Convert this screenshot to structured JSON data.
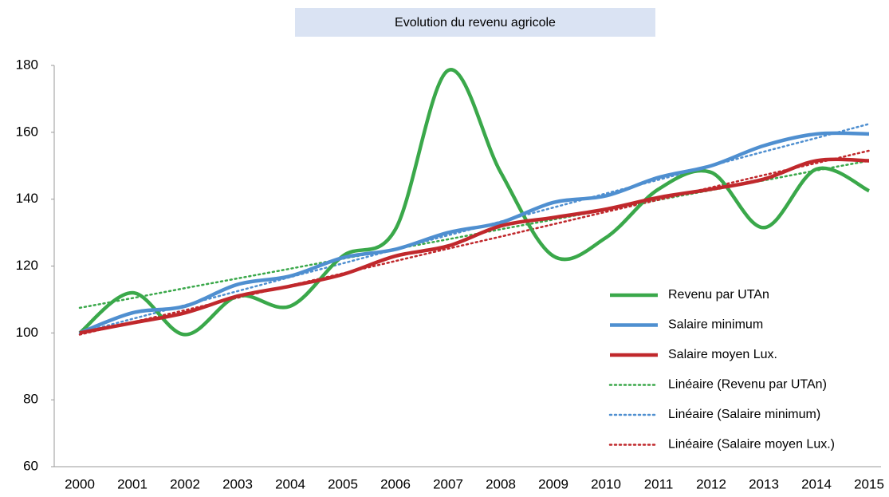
{
  "chart_data": {
    "type": "line",
    "title": "Evolution du revenu agricole",
    "categories": [
      "2000",
      "2001",
      "2002",
      "2003",
      "2004",
      "2005",
      "2006",
      "2007",
      "2008",
      "2009",
      "2010",
      "2011",
      "2012",
      "2013",
      "2014",
      "2015"
    ],
    "series": [
      {
        "name": "Revenu par UTAn",
        "color": "#3aa84a",
        "style": "solid",
        "values": [
          100,
          112,
          99.5,
          111,
          108,
          123,
          131,
          178.5,
          148,
          123,
          128.5,
          143,
          148,
          131.5,
          149,
          142.5
        ]
      },
      {
        "name": "Salaire minimum",
        "color": "#4f8fd0",
        "style": "solid",
        "values": [
          100,
          106,
          108,
          114.5,
          117,
          122.5,
          125,
          130,
          133,
          139,
          141,
          146.5,
          150,
          156,
          159.5,
          159.5
        ]
      },
      {
        "name": "Salaire moyen Lux.",
        "color": "#c0282c",
        "style": "solid",
        "values": [
          100,
          103,
          106,
          111,
          114,
          117.5,
          123,
          126,
          132,
          134.5,
          137,
          140.5,
          143,
          146,
          151.5,
          151.5
        ]
      },
      {
        "name": "Linéaire (Revenu par UTAn)",
        "color": "#3aa84a",
        "style": "dotted",
        "values": [
          107.5,
          110.4,
          113.4,
          116.3,
          119.2,
          122.2,
          125.1,
          128,
          131,
          133.9,
          136.8,
          139.8,
          142.7,
          145.6,
          148.6,
          151.5
        ]
      },
      {
        "name": "Linéaire (Salaire minimum)",
        "color": "#4f8fd0",
        "style": "dotted",
        "values": [
          100,
          104.2,
          108.3,
          112.5,
          116.7,
          120.8,
          125,
          129.2,
          133.3,
          137.5,
          141.7,
          145.8,
          150,
          154.2,
          158.3,
          162.5
        ]
      },
      {
        "name": "Linéaire (Salaire moyen Lux.)",
        "color": "#c0282c",
        "style": "dotted",
        "values": [
          99.5,
          103.2,
          106.8,
          110.5,
          114.2,
          117.8,
          121.5,
          125.2,
          128.8,
          132.5,
          136.2,
          139.8,
          143.5,
          147.2,
          150.8,
          154.5
        ]
      }
    ],
    "ylim": [
      60,
      180
    ],
    "yticks": [
      60,
      80,
      100,
      120,
      140,
      160,
      180
    ],
    "grid": false,
    "legend": "bottom-right",
    "smooth": true
  }
}
